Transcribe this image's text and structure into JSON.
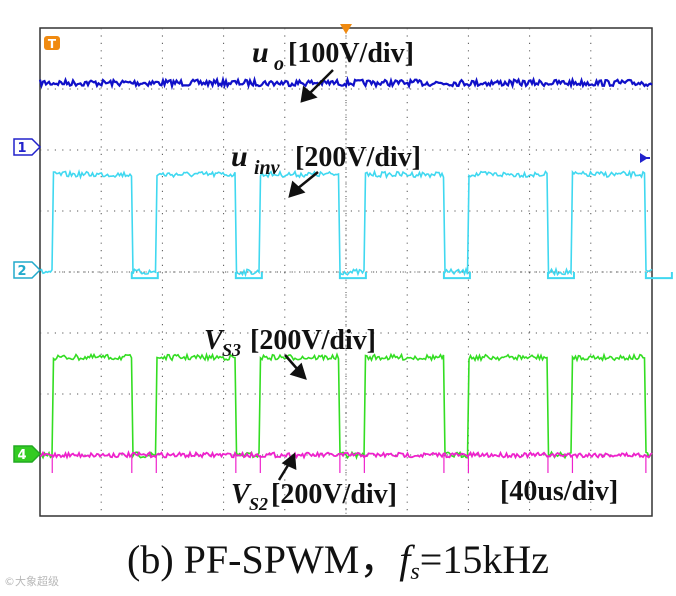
{
  "chart_data": {
    "type": "line",
    "title": "",
    "time_scale": "[40us/div]",
    "grid": true,
    "divisions": {
      "x": 10,
      "y": 8
    },
    "channel_markers": [
      "1",
      "2",
      "4"
    ],
    "trigger_marker": "T",
    "series": [
      {
        "name": "u_o",
        "label_main": "u",
        "label_sub": "o",
        "scale": "[100V/div]",
        "color": "#1010c8",
        "kind": "dc",
        "level_div": 7.1
      },
      {
        "name": "u_inv",
        "label_main": "u",
        "label_sub": "inv",
        "scale": "[200V/div]",
        "color": "#40d8f0",
        "kind": "pulse",
        "base_div": 4.0,
        "high_div": 5.6,
        "low_div": 3.9,
        "pulses": [
          [
            0.2,
            1.5
          ],
          [
            1.9,
            3.2
          ],
          [
            3.6,
            4.9
          ],
          [
            5.3,
            6.6
          ],
          [
            7.0,
            8.3
          ],
          [
            8.7,
            9.9
          ]
        ]
      },
      {
        "name": "V_S3",
        "label_main": "V",
        "label_sub": "S3",
        "scale": "[200V/div]",
        "color": "#33dd22",
        "kind": "pulse",
        "base_div": 1.0,
        "high_div": 2.6,
        "low_div": 1.0,
        "pulses": [
          [
            0.2,
            1.5
          ],
          [
            1.9,
            3.2
          ],
          [
            3.6,
            4.9
          ],
          [
            5.3,
            6.6
          ],
          [
            7.0,
            8.3
          ],
          [
            8.7,
            9.9
          ]
        ]
      },
      {
        "name": "V_S2",
        "label_main": "V",
        "label_sub": "S2",
        "scale": "[200V/div]",
        "color": "#ee22cc",
        "kind": "dc",
        "level_div": 1.0
      }
    ]
  },
  "caption": {
    "prefix": "(b) PF-SPWM，",
    "var_main": "f",
    "var_sub": "s",
    "suffix": "=15kHz"
  },
  "watermark": "©大象超级"
}
